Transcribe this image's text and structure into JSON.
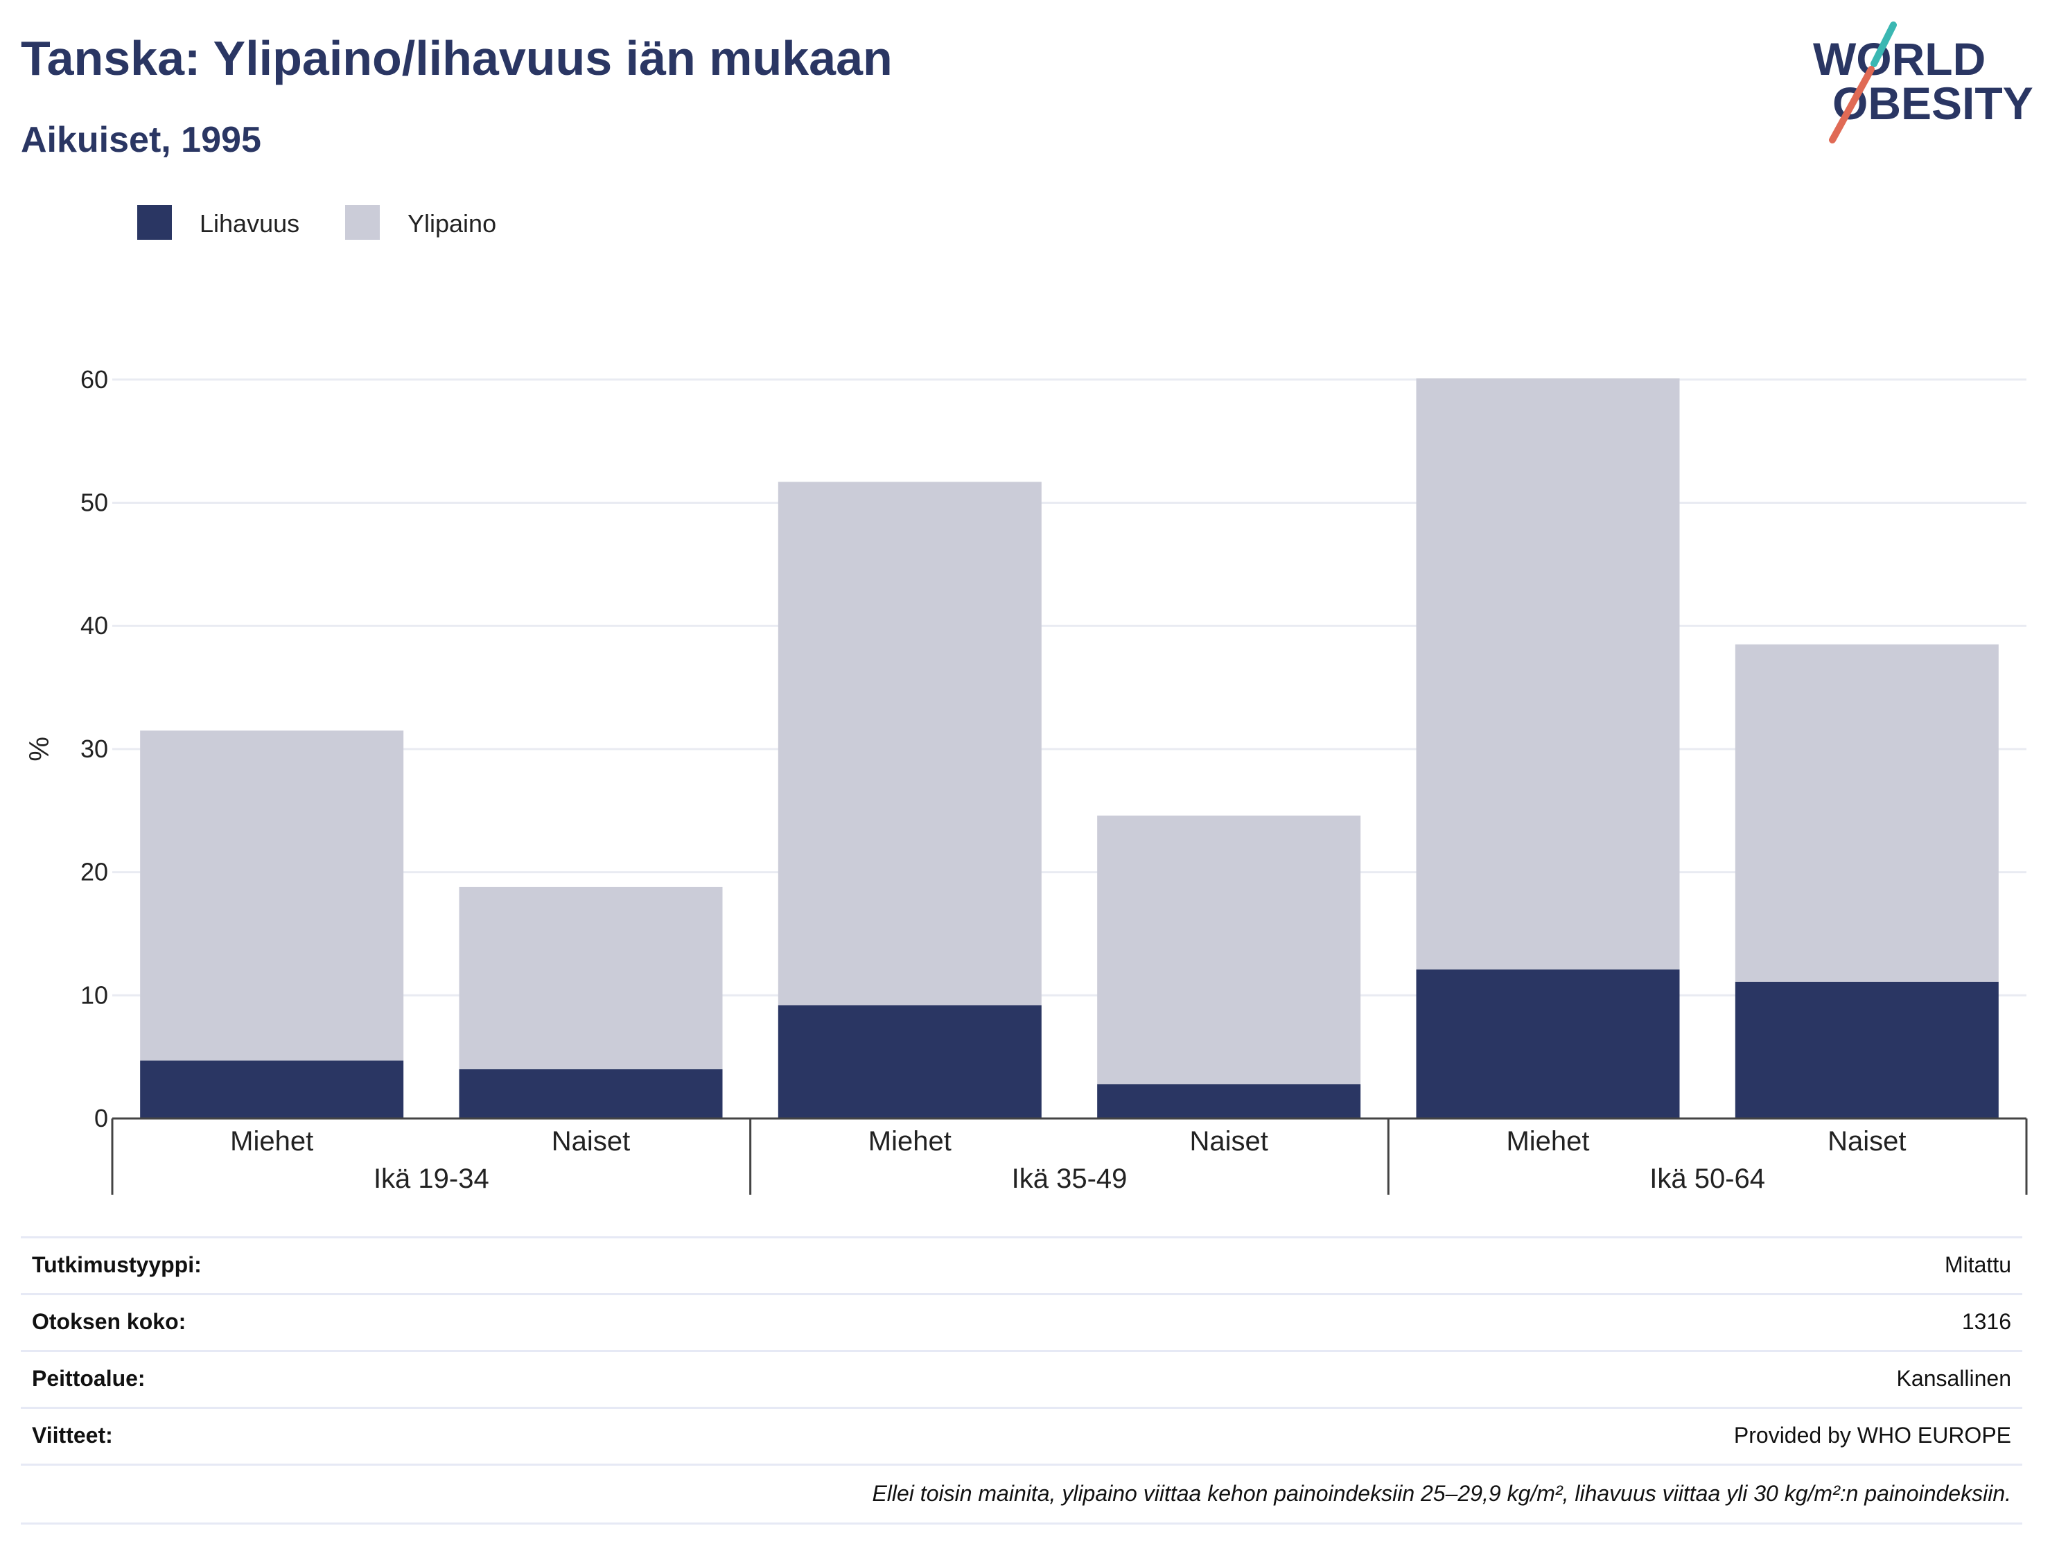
{
  "title": "Tanska: Ylipaino/lihavuus iän mukaan",
  "subtitle": "Aikuiset, 1995",
  "logo": {
    "line1": "WORLD",
    "line2": "OBESITY"
  },
  "colors": {
    "obesity": "#2a3663",
    "overweight": "#cbccd8",
    "title": "#2a3663",
    "accent_teal": "#3ab7b2",
    "accent_coral": "#e06a55",
    "grid": "#e9ebf2"
  },
  "chart_data": {
    "type": "bar",
    "stacked": true,
    "ylabel": "%",
    "ylim": [
      0,
      60
    ],
    "yticks": [
      0,
      10,
      20,
      30,
      40,
      50,
      60
    ],
    "groups": [
      "Ikä 19-34",
      "Ikä 35-49",
      "Ikä 50-64"
    ],
    "categories": [
      "Miehet",
      "Naiset",
      "Miehet",
      "Naiset",
      "Miehet",
      "Naiset"
    ],
    "series": [
      {
        "name": "Lihavuus",
        "values": [
          4.7,
          4.0,
          9.2,
          2.8,
          12.1,
          11.1
        ]
      },
      {
        "name": "Ylipaino",
        "values": [
          26.8,
          14.8,
          42.5,
          21.8,
          48.0,
          27.4
        ]
      }
    ],
    "grid": true,
    "legend": "top-left"
  },
  "meta": {
    "rows": [
      {
        "key": "Tutkimustyyppi:",
        "value": "Mitattu"
      },
      {
        "key": "Otoksen koko:",
        "value": "1316"
      },
      {
        "key": "Peittoalue:",
        "value": "Kansallinen"
      },
      {
        "key": "Viitteet:",
        "value": "Provided by WHO EUROPE"
      }
    ],
    "footnote": "Ellei toisin mainita, ylipaino viittaa kehon painoindeksiin 25–29,9 kg/m², lihavuus viittaa yli 30 kg/m²:n painoindeksiin."
  }
}
